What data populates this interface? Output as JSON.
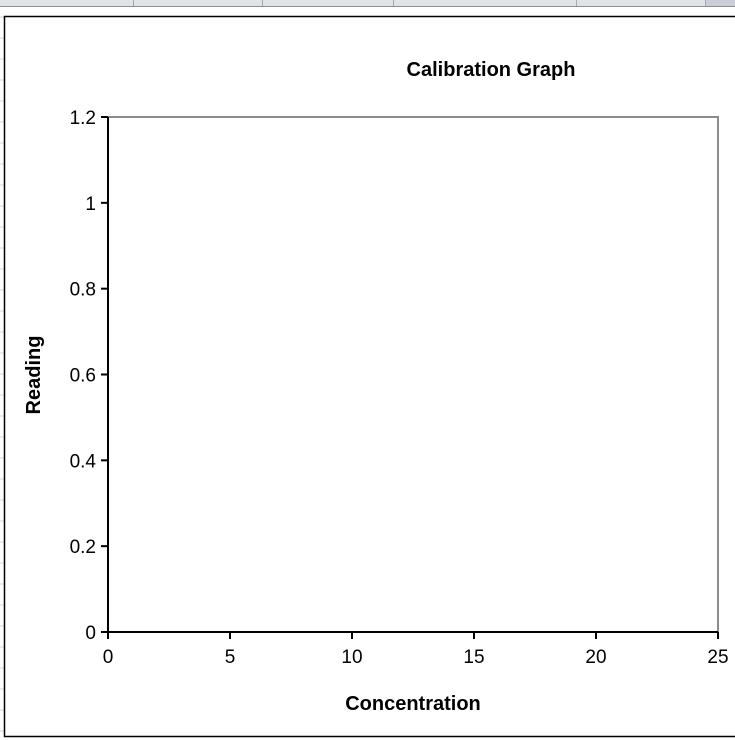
{
  "chart_data": {
    "type": "scatter",
    "title": "Calibration Graph",
    "xlabel": "Concentration",
    "ylabel": "Reading",
    "xlim": [
      0,
      25
    ],
    "ylim": [
      0,
      1.2
    ],
    "x_ticks": [
      0,
      5,
      10,
      15,
      20,
      25
    ],
    "y_ticks": [
      0,
      0.2,
      0.4,
      0.6,
      0.8,
      1,
      1.2
    ],
    "x_tick_labels": [
      "0",
      "5",
      "10",
      "15",
      "20",
      "25"
    ],
    "y_tick_labels": [
      "0",
      "0.2",
      "0.4",
      "0.6",
      "0.8",
      "1",
      "1.2"
    ],
    "series": [],
    "grid": false,
    "legend": "none",
    "colors": {
      "axis": "#000000",
      "plot_border": "#8c8c8c",
      "plot_background": "#ffffff",
      "chart_border": "#000000"
    }
  }
}
